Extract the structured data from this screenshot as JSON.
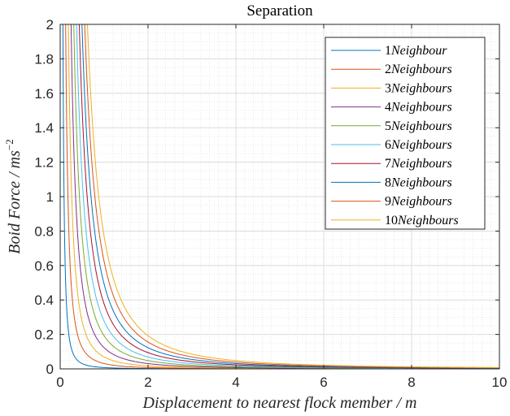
{
  "chart_data": {
    "type": "line",
    "title": "Separation",
    "xlabel": "Displacement to nearest flock member / m",
    "ylabel": "Boid Force / ms",
    "ylabel_exponent": "−2",
    "xlim": [
      0,
      10
    ],
    "ylim": [
      0,
      2
    ],
    "xticks": [
      "0",
      "2",
      "4",
      "6",
      "8",
      "10"
    ],
    "yticks": [
      "0",
      "0.2",
      "0.4",
      "0.6",
      "0.8",
      "1",
      "1.2",
      "1.4",
      "1.6",
      "1.8",
      "2"
    ],
    "grid": true,
    "minor_grid": true,
    "legend_position": "top-right",
    "model": "y = k / x^2",
    "series": [
      {
        "num": "1",
        "name": "Neighbour",
        "k": 0.0077,
        "color": "#0072BD"
      },
      {
        "num": "2",
        "name": "Neighbours",
        "k": 0.031,
        "color": "#D95319"
      },
      {
        "num": "3",
        "name": "Neighbours",
        "k": 0.069,
        "color": "#EDB120"
      },
      {
        "num": "4",
        "name": "Neighbours",
        "k": 0.123,
        "color": "#7E2F8E"
      },
      {
        "num": "5",
        "name": "Neighbours",
        "k": 0.192,
        "color": "#77AC30"
      },
      {
        "num": "6",
        "name": "Neighbours",
        "k": 0.277,
        "color": "#4DBEEE"
      },
      {
        "num": "7",
        "name": "Neighbours",
        "k": 0.377,
        "color": "#A2142F"
      },
      {
        "num": "8",
        "name": "Neighbours",
        "k": 0.492,
        "color": "#0072BD"
      },
      {
        "num": "9",
        "name": "Neighbours",
        "k": 0.623,
        "color": "#D95319"
      },
      {
        "num": "10",
        "name": "Neighbours",
        "k": 0.77,
        "color": "#EDB120"
      }
    ]
  }
}
